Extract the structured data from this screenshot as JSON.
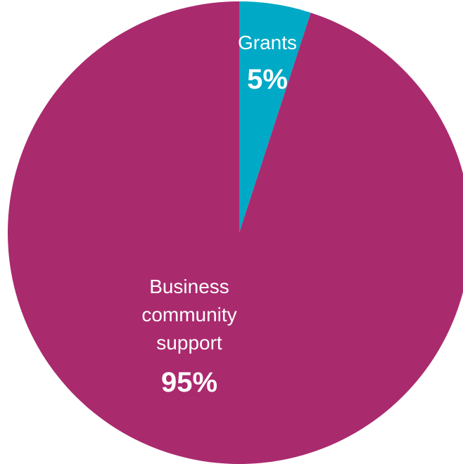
{
  "chart_data": {
    "type": "pie",
    "categories": [
      "Grants",
      "Business community support"
    ],
    "values": [
      5,
      95
    ],
    "colors": [
      "#00a9c6",
      "#aa2a6e"
    ],
    "start_angle_deg": 0,
    "direction": "clockwise",
    "data_labels": [
      {
        "name_lines": [
          "Grants"
        ],
        "value_label": "5%"
      },
      {
        "name_lines": [
          "Business",
          "community",
          "support"
        ],
        "value_label": "95%"
      }
    ],
    "legend": "none"
  }
}
